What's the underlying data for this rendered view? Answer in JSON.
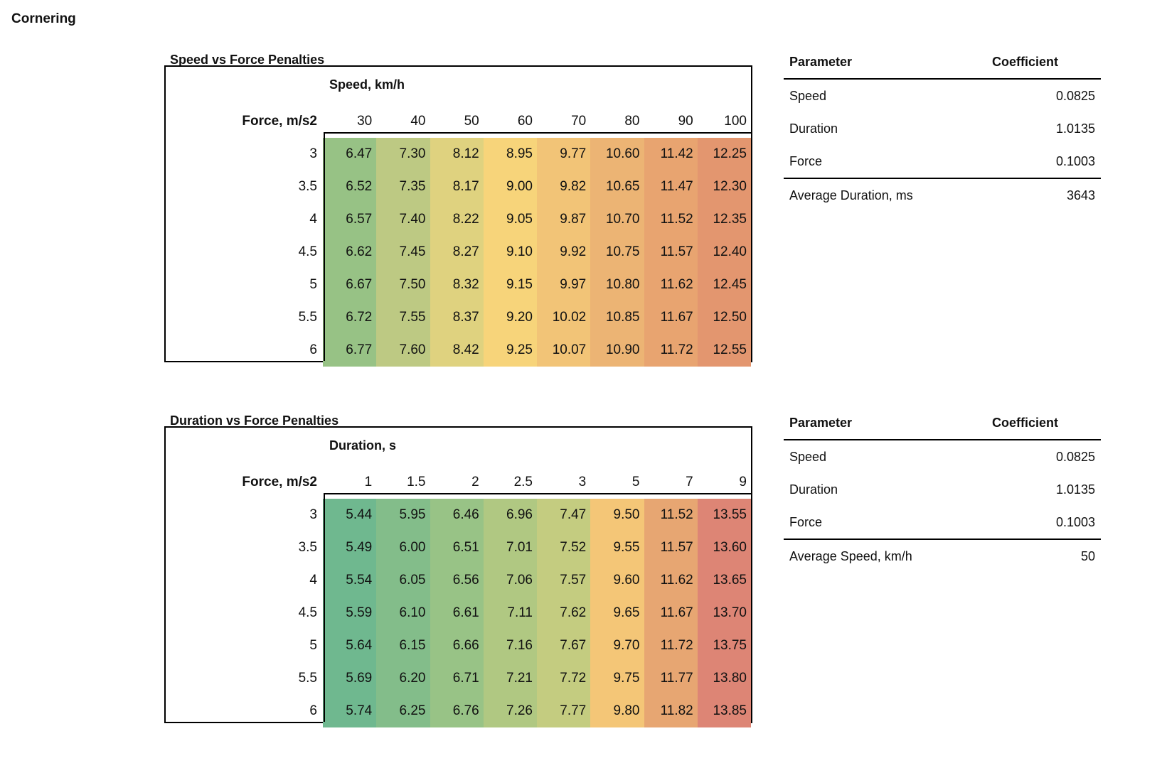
{
  "title": "Cornering",
  "tables": [
    {
      "title": "Speed vs Force Penalties",
      "axis_label": "Speed, km/h",
      "row_header": "Force, m/s2",
      "columns": [
        "30",
        "40",
        "50",
        "60",
        "70",
        "80",
        "90",
        "100"
      ],
      "colors": [
        "#97c285",
        "#bdc983",
        "#dfd27f",
        "#f7d47a",
        "#f2c477",
        "#ecb474",
        "#e8a470",
        "#e3966f"
      ],
      "rows": [
        {
          "force": "3",
          "values": [
            "6.47",
            "7.30",
            "8.12",
            "8.95",
            "9.77",
            "10.60",
            "11.42",
            "12.25"
          ]
        },
        {
          "force": "3.5",
          "values": [
            "6.52",
            "7.35",
            "8.17",
            "9.00",
            "9.82",
            "10.65",
            "11.47",
            "12.30"
          ]
        },
        {
          "force": "4",
          "values": [
            "6.57",
            "7.40",
            "8.22",
            "9.05",
            "9.87",
            "10.70",
            "11.52",
            "12.35"
          ]
        },
        {
          "force": "4.5",
          "values": [
            "6.62",
            "7.45",
            "8.27",
            "9.10",
            "9.92",
            "10.75",
            "11.57",
            "12.40"
          ]
        },
        {
          "force": "5",
          "values": [
            "6.67",
            "7.50",
            "8.32",
            "9.15",
            "9.97",
            "10.80",
            "11.62",
            "12.45"
          ]
        },
        {
          "force": "5.5",
          "values": [
            "6.72",
            "7.55",
            "8.37",
            "9.20",
            "10.02",
            "10.85",
            "11.67",
            "12.50"
          ]
        },
        {
          "force": "6",
          "values": [
            "6.77",
            "7.60",
            "8.42",
            "9.25",
            "10.07",
            "10.90",
            "11.72",
            "12.55"
          ]
        }
      ],
      "params": {
        "header": [
          "Parameter",
          "Coefficient"
        ],
        "rows": [
          [
            "Speed",
            "0.0825"
          ],
          [
            "Duration",
            "1.0135"
          ],
          [
            "Force",
            "0.1003"
          ]
        ],
        "extra": [
          "Average Duration, ms",
          "3643"
        ]
      }
    },
    {
      "title": "Duration vs Force Penalties",
      "axis_label": "Duration, s",
      "row_header": "Force, m/s2",
      "columns": [
        "1",
        "1.5",
        "2",
        "2.5",
        "3",
        "5",
        "7",
        "9"
      ],
      "colors": [
        "#6fb88f",
        "#83bd8a",
        "#98c386",
        "#b0c882",
        "#c4cc80",
        "#f4c677",
        "#e7a672",
        "#dd8575"
      ],
      "rows": [
        {
          "force": "3",
          "values": [
            "5.44",
            "5.95",
            "6.46",
            "6.96",
            "7.47",
            "9.50",
            "11.52",
            "13.55"
          ]
        },
        {
          "force": "3.5",
          "values": [
            "5.49",
            "6.00",
            "6.51",
            "7.01",
            "7.52",
            "9.55",
            "11.57",
            "13.60"
          ]
        },
        {
          "force": "4",
          "values": [
            "5.54",
            "6.05",
            "6.56",
            "7.06",
            "7.57",
            "9.60",
            "11.62",
            "13.65"
          ]
        },
        {
          "force": "4.5",
          "values": [
            "5.59",
            "6.10",
            "6.61",
            "7.11",
            "7.62",
            "9.65",
            "11.67",
            "13.70"
          ]
        },
        {
          "force": "5",
          "values": [
            "5.64",
            "6.15",
            "6.66",
            "7.16",
            "7.67",
            "9.70",
            "11.72",
            "13.75"
          ]
        },
        {
          "force": "5.5",
          "values": [
            "5.69",
            "6.20",
            "6.71",
            "7.21",
            "7.72",
            "9.75",
            "11.77",
            "13.80"
          ]
        },
        {
          "force": "6",
          "values": [
            "5.74",
            "6.25",
            "6.76",
            "7.26",
            "7.77",
            "9.80",
            "11.82",
            "13.85"
          ]
        }
      ],
      "params": {
        "header": [
          "Parameter",
          "Coefficient"
        ],
        "rows": [
          [
            "Speed",
            "0.0825"
          ],
          [
            "Duration",
            "1.0135"
          ],
          [
            "Force",
            "0.1003"
          ]
        ],
        "extra": [
          "Average Speed, km/h",
          "50"
        ]
      }
    }
  ]
}
